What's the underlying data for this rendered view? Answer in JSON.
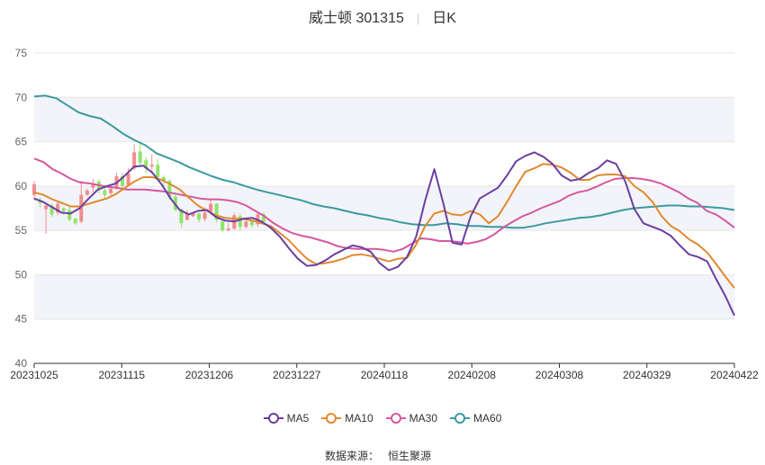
{
  "title": {
    "name": "威士顿 301315",
    "period": "日K"
  },
  "source": {
    "label": "数据来源：",
    "value": "恒生聚源"
  },
  "colors": {
    "up": "#f28c8c",
    "down": "#8fe36a",
    "MA5": "#6a3fa0",
    "MA10": "#e08a30",
    "MA30": "#d458a0",
    "MA60": "#3a9aa0"
  },
  "chart_data": {
    "type": "candlestick",
    "ylim": [
      40,
      75
    ],
    "yticks": [
      40,
      45,
      50,
      55,
      60,
      65,
      70,
      75
    ],
    "xticks": [
      "20231025",
      "20231115",
      "20231206",
      "20231227",
      "20240118",
      "20240208",
      "20240308",
      "20240329",
      "20240422"
    ],
    "legend_position": "bottom",
    "series": [
      {
        "name": "MA5",
        "values": [
          58.6,
          58.2,
          57.6,
          57.0,
          56.9,
          57.5,
          58.6,
          59.6,
          60.0,
          60.3,
          61.2,
          62.2,
          62.3,
          61.5,
          60.2,
          58.6,
          57.3,
          56.8,
          57.2,
          57.3,
          56.5,
          56.1,
          56.0,
          56.3,
          56.4,
          56.0,
          55.3,
          54.3,
          53.0,
          51.8,
          51.0,
          51.1,
          51.6,
          52.3,
          52.8,
          53.3,
          53.1,
          52.6,
          51.3,
          50.5,
          50.9,
          52.0,
          54.3,
          58.4,
          61.9,
          58.0,
          53.6,
          53.4,
          56.6,
          58.6,
          59.2,
          59.8,
          61.2,
          62.8,
          63.4,
          63.8,
          63.3,
          62.5,
          61.2,
          60.6,
          60.8,
          61.5,
          62.0,
          62.9,
          62.5,
          60.5,
          57.4,
          55.8,
          55.4,
          55.0,
          54.4,
          53.3,
          52.3,
          52.0,
          51.5,
          49.5,
          47.6,
          45.4
        ]
      },
      {
        "name": "MA10",
        "values": [
          59.3,
          59.0,
          58.5,
          58.1,
          57.7,
          57.7,
          58.0,
          58.3,
          58.6,
          59.1,
          59.8,
          60.5,
          61.0,
          61.0,
          60.7,
          60.2,
          59.6,
          58.7,
          57.8,
          57.2,
          56.7,
          56.4,
          56.3,
          56.3,
          56.1,
          55.8,
          55.5,
          54.7,
          53.9,
          52.8,
          51.8,
          51.2,
          51.3,
          51.5,
          51.8,
          52.2,
          52.3,
          52.1,
          51.8,
          51.5,
          51.8,
          51.9,
          53.4,
          55.5,
          56.9,
          57.2,
          56.8,
          56.7,
          57.2,
          56.8,
          55.8,
          56.6,
          58.2,
          60.0,
          61.6,
          62.0,
          62.5,
          62.4,
          62.1,
          61.5,
          60.7,
          60.7,
          61.2,
          61.3,
          61.3,
          61.1,
          60.0,
          59.3,
          58.2,
          56.6,
          55.5,
          54.9,
          54.0,
          53.4,
          52.5,
          51.2,
          49.8,
          48.5
        ]
      },
      {
        "name": "MA30",
        "values": [
          63.1,
          62.7,
          61.9,
          61.4,
          60.8,
          60.4,
          60.3,
          60.1,
          59.9,
          59.8,
          59.6,
          59.6,
          59.6,
          59.5,
          59.4,
          59.2,
          59.0,
          58.8,
          58.6,
          58.5,
          58.5,
          58.4,
          58.2,
          57.8,
          57.2,
          56.6,
          55.8,
          55.2,
          54.7,
          54.4,
          54.2,
          53.9,
          53.6,
          53.2,
          53.0,
          52.9,
          52.9,
          52.9,
          52.8,
          52.6,
          52.9,
          53.5,
          54.1,
          54.0,
          53.8,
          53.8,
          53.7,
          53.5,
          53.7,
          54.0,
          54.6,
          55.4,
          56.0,
          56.6,
          57.0,
          57.5,
          57.9,
          58.3,
          58.9,
          59.3,
          59.5,
          59.9,
          60.4,
          60.8,
          60.9,
          60.9,
          60.8,
          60.6,
          60.3,
          59.8,
          59.3,
          58.6,
          58.1,
          57.2,
          56.8,
          56.1,
          55.3
        ]
      },
      {
        "name": "MA60",
        "values": [
          70.1,
          70.2,
          69.9,
          69.1,
          68.3,
          67.9,
          67.6,
          66.8,
          65.9,
          65.2,
          64.6,
          63.7,
          63.2,
          62.7,
          62.1,
          61.6,
          61.1,
          60.7,
          60.4,
          60.0,
          59.6,
          59.3,
          59.0,
          58.7,
          58.4,
          58.0,
          57.7,
          57.5,
          57.2,
          56.9,
          56.7,
          56.4,
          56.2,
          55.9,
          55.7,
          55.6,
          55.6,
          55.8,
          55.7,
          55.5,
          55.5,
          55.4,
          55.4,
          55.3,
          55.3,
          55.5,
          55.8,
          56.0,
          56.2,
          56.4,
          56.5,
          56.7,
          57.0,
          57.3,
          57.5,
          57.6,
          57.7,
          57.8,
          57.8,
          57.7,
          57.7,
          57.6,
          57.5,
          57.3
        ]
      },
      {
        "name": "K",
        "values": [
          [
            59.0,
            60.2,
            58.4,
            60.6
          ],
          [
            58.4,
            58.1,
            57.6,
            58.7
          ],
          [
            57.4,
            57.8,
            54.6,
            58.0
          ],
          [
            57.8,
            56.8,
            56.5,
            58.0
          ],
          [
            57.0,
            58.0,
            56.7,
            58.3
          ],
          [
            57.5,
            57.2,
            56.8,
            57.6
          ],
          [
            57.3,
            56.2,
            56.0,
            57.9
          ],
          [
            56.3,
            55.8,
            55.6,
            56.4
          ],
          [
            56.0,
            59.0,
            55.8,
            60.6
          ],
          [
            59.0,
            59.5,
            58.9,
            59.7
          ],
          [
            59.8,
            60.3,
            59.3,
            60.8
          ],
          [
            60.5,
            59.6,
            59.2,
            60.8
          ],
          [
            59.5,
            59.0,
            58.6,
            59.9
          ],
          [
            59.2,
            59.7,
            58.9,
            60.2
          ],
          [
            59.7,
            61.1,
            59.6,
            61.5
          ],
          [
            61.1,
            60.0,
            59.6,
            61.5
          ],
          [
            60.1,
            61.4,
            60.0,
            62.0
          ],
          [
            62.0,
            63.8,
            61.8,
            64.7
          ],
          [
            63.9,
            62.6,
            62.1,
            64.9
          ],
          [
            62.9,
            62.0,
            61.4,
            63.3
          ],
          [
            62.2,
            62.4,
            61.6,
            63.6
          ],
          [
            62.4,
            61.0,
            60.6,
            63.0
          ],
          [
            61.0,
            60.6,
            60.0,
            61.2
          ],
          [
            60.6,
            58.7,
            58.4,
            60.8
          ],
          [
            58.8,
            57.3,
            57.2,
            59.3
          ],
          [
            57.4,
            55.8,
            55.3,
            57.5
          ],
          [
            56.2,
            56.9,
            56.1,
            57.3
          ],
          [
            56.6,
            56.9,
            56.5,
            57.0
          ],
          [
            56.9,
            56.2,
            55.9,
            57.0
          ],
          [
            56.3,
            57.0,
            56.0,
            57.6
          ],
          [
            57.1,
            58.0,
            56.8,
            58.4
          ],
          [
            58.0,
            56.2,
            55.9,
            58.1
          ],
          [
            56.0,
            55.0,
            54.8,
            56.3
          ],
          [
            55.0,
            55.2,
            54.9,
            55.8
          ],
          [
            55.2,
            56.7,
            55.0,
            57.0
          ],
          [
            56.6,
            55.4,
            54.9,
            56.9
          ],
          [
            55.4,
            56.0,
            55.2,
            56.4
          ],
          [
            56.0,
            55.6,
            55.3,
            56.2
          ],
          [
            55.7,
            56.8,
            55.4,
            57.0
          ],
          [
            56.8,
            56.0,
            55.9,
            57.0
          ]
        ]
      }
    ]
  }
}
